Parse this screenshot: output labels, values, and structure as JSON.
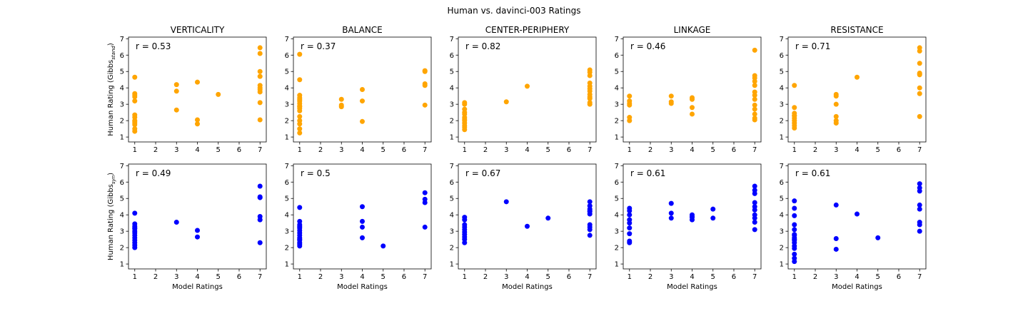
{
  "suptitle": "Human vs. davinci-003 Ratings",
  "colors": {
    "row1": "#ffa500",
    "row2": "#0000ff"
  },
  "chart_data": [
    {
      "type": "scatter",
      "title": "VERTICALITY",
      "r_label": "r = 0.53",
      "xlim": [
        0.7,
        7.3
      ],
      "ylim": [
        0.7,
        7.1
      ],
      "xticks": [
        1,
        2,
        3,
        4,
        5,
        6,
        7
      ],
      "yticks": [
        1,
        2,
        3,
        4,
        5,
        6,
        7
      ],
      "xlabel": "",
      "ylabel": "Human Rating (Gibbs",
      "ylabel_sub": "stand",
      "ylabel_tail": ")",
      "color": "#ffa500",
      "x": [
        1,
        1,
        1,
        1,
        1,
        1,
        1,
        1,
        1,
        1,
        1,
        1,
        1,
        3,
        3,
        3,
        4,
        4,
        4,
        5,
        7,
        7,
        7,
        7,
        7,
        7,
        7,
        7,
        7,
        7
      ],
      "y": [
        4.65,
        3.65,
        3.45,
        3.2,
        2.35,
        2.2,
        2.0,
        1.85,
        1.75,
        1.5,
        1.35,
        3.55,
        1.95,
        4.2,
        3.8,
        2.65,
        4.35,
        2.05,
        1.8,
        3.6,
        6.45,
        6.1,
        5.0,
        4.7,
        4.15,
        3.9,
        3.75,
        3.1,
        2.05,
        4.0
      ]
    },
    {
      "type": "scatter",
      "title": "BALANCE",
      "r_label": "r = 0.37",
      "xlim": [
        0.7,
        7.3
      ],
      "ylim": [
        0.7,
        7.1
      ],
      "xticks": [
        1,
        2,
        3,
        4,
        5,
        6,
        7
      ],
      "yticks": [
        1,
        2,
        3,
        4,
        5,
        6,
        7
      ],
      "xlabel": "",
      "ylabel": "",
      "color": "#ffa500",
      "x": [
        1,
        1,
        1,
        1,
        1,
        1,
        1,
        1,
        1,
        1,
        1,
        1,
        1,
        1,
        1,
        1,
        3,
        3,
        3,
        4,
        4,
        4,
        7,
        7,
        7,
        7,
        7
      ],
      "y": [
        6.05,
        4.5,
        3.55,
        3.4,
        3.2,
        3.05,
        2.9,
        2.75,
        2.6,
        2.25,
        2.0,
        1.8,
        1.5,
        1.25,
        3.3,
        2.85,
        3.3,
        2.95,
        2.85,
        3.9,
        3.2,
        1.95,
        5.05,
        5.0,
        4.25,
        4.15,
        2.95
      ]
    },
    {
      "type": "scatter",
      "title": "CENTER-PERIPHERY",
      "r_label": "r = 0.82",
      "xlim": [
        0.7,
        7.3
      ],
      "ylim": [
        0.7,
        7.1
      ],
      "xticks": [
        1,
        2,
        3,
        4,
        5,
        6,
        7
      ],
      "yticks": [
        1,
        2,
        3,
        4,
        5,
        6,
        7
      ],
      "xlabel": "",
      "ylabel": "",
      "color": "#ffa500",
      "x": [
        1,
        1,
        1,
        1,
        1,
        1,
        1,
        1,
        1,
        1,
        1,
        1,
        3,
        4,
        7,
        7,
        7,
        7,
        7,
        7,
        7,
        7,
        7,
        7,
        7,
        7
      ],
      "y": [
        3.1,
        3.0,
        2.7,
        2.5,
        2.4,
        2.2,
        2.1,
        2.0,
        1.85,
        1.7,
        1.6,
        1.45,
        3.15,
        4.1,
        5.1,
        4.95,
        4.75,
        4.3,
        4.1,
        3.95,
        3.8,
        3.6,
        3.45,
        3.35,
        3.1,
        3.0
      ]
    },
    {
      "type": "scatter",
      "title": "LINKAGE",
      "r_label": "r = 0.46",
      "xlim": [
        0.7,
        7.3
      ],
      "ylim": [
        0.7,
        7.1
      ],
      "xticks": [
        1,
        2,
        3,
        4,
        5,
        6,
        7
      ],
      "yticks": [
        1,
        2,
        3,
        4,
        5,
        6,
        7
      ],
      "xlabel": "",
      "ylabel": "",
      "color": "#ffa500",
      "x": [
        1,
        1,
        1,
        1,
        1,
        1,
        3,
        3,
        3,
        4,
        4,
        4,
        4,
        7,
        7,
        7,
        7,
        7,
        7,
        7,
        7,
        7,
        7,
        7,
        7,
        7
      ],
      "y": [
        3.5,
        3.2,
        3.05,
        2.95,
        2.2,
        2.0,
        3.5,
        3.15,
        3.05,
        3.4,
        3.3,
        2.8,
        2.4,
        6.3,
        4.75,
        4.6,
        4.4,
        4.15,
        3.75,
        3.55,
        3.3,
        2.95,
        2.7,
        2.4,
        2.15,
        2.05
      ]
    },
    {
      "type": "scatter",
      "title": "RESISTANCE",
      "r_label": "r = 0.71",
      "xlim": [
        0.7,
        7.3
      ],
      "ylim": [
        0.7,
        7.1
      ],
      "xticks": [
        1,
        2,
        3,
        4,
        5,
        6,
        7
      ],
      "yticks": [
        1,
        2,
        3,
        4,
        5,
        6,
        7
      ],
      "xlabel": "",
      "ylabel": "",
      "color": "#ffa500",
      "x": [
        1,
        1,
        1,
        1,
        1,
        1,
        1,
        1,
        1,
        1,
        3,
        3,
        3,
        3,
        3,
        3,
        4,
        7,
        7,
        7,
        7,
        7,
        7,
        7,
        7,
        7
      ],
      "y": [
        4.15,
        2.8,
        2.45,
        2.3,
        2.15,
        2.0,
        1.85,
        1.7,
        1.55,
        2.3,
        3.6,
        3.5,
        3.0,
        2.25,
        2.0,
        1.85,
        4.65,
        6.45,
        6.25,
        5.5,
        4.9,
        4.8,
        4.0,
        3.65,
        2.25,
        4.85
      ]
    },
    {
      "type": "scatter",
      "title": "",
      "r_label": "r = 0.49",
      "xlim": [
        0.7,
        7.3
      ],
      "ylim": [
        0.7,
        7.1
      ],
      "xticks": [
        1,
        2,
        3,
        4,
        5,
        6,
        7
      ],
      "yticks": [
        1,
        2,
        3,
        4,
        5,
        6,
        7
      ],
      "xlabel": "Model Ratings",
      "ylabel": "Human Rating (Gibbs",
      "ylabel_sub": "syn",
      "ylabel_tail": ")",
      "color": "#0000ff",
      "x": [
        1,
        1,
        1,
        1,
        1,
        1,
        1,
        1,
        1,
        1,
        1,
        1,
        1,
        3,
        4,
        4,
        7,
        7,
        7,
        7,
        7,
        7
      ],
      "y": [
        4.1,
        3.45,
        3.3,
        3.15,
        3.0,
        2.9,
        2.75,
        2.6,
        2.45,
        2.3,
        2.15,
        2.0,
        3.2,
        3.55,
        3.05,
        2.65,
        5.75,
        5.1,
        5.05,
        3.9,
        3.7,
        2.3
      ]
    },
    {
      "type": "scatter",
      "title": "",
      "r_label": "r = 0.5",
      "xlim": [
        0.7,
        7.3
      ],
      "ylim": [
        0.7,
        7.1
      ],
      "xticks": [
        1,
        2,
        3,
        4,
        5,
        6,
        7
      ],
      "yticks": [
        1,
        2,
        3,
        4,
        5,
        6,
        7
      ],
      "xlabel": "Model Ratings",
      "ylabel": "",
      "color": "#0000ff",
      "x": [
        1,
        1,
        1,
        1,
        1,
        1,
        1,
        1,
        1,
        1,
        1,
        1,
        1,
        1,
        4,
        4,
        4,
        4,
        5,
        7,
        7,
        7,
        7
      ],
      "y": [
        4.45,
        3.6,
        3.4,
        3.2,
        3.05,
        2.9,
        2.75,
        2.6,
        2.45,
        2.3,
        2.2,
        2.1,
        3.3,
        2.5,
        4.5,
        3.6,
        3.25,
        2.6,
        2.1,
        5.35,
        4.95,
        4.75,
        3.25
      ]
    },
    {
      "type": "scatter",
      "title": "",
      "r_label": "r = 0.67",
      "xlim": [
        0.7,
        7.3
      ],
      "ylim": [
        0.7,
        7.1
      ],
      "xticks": [
        1,
        2,
        3,
        4,
        5,
        6,
        7
      ],
      "yticks": [
        1,
        2,
        3,
        4,
        5,
        6,
        7
      ],
      "xlabel": "Model Ratings",
      "ylabel": "",
      "color": "#0000ff",
      "x": [
        1,
        1,
        1,
        1,
        1,
        1,
        1,
        1,
        1,
        1,
        3,
        4,
        5,
        7,
        7,
        7,
        7,
        7,
        7,
        7,
        7,
        7,
        7
      ],
      "y": [
        3.85,
        3.7,
        3.25,
        3.1,
        2.95,
        2.8,
        2.65,
        2.5,
        2.3,
        3.4,
        4.8,
        3.3,
        3.8,
        4.8,
        4.55,
        4.35,
        4.2,
        4.05,
        3.4,
        3.25,
        3.1,
        2.75,
        4.25
      ]
    },
    {
      "type": "scatter",
      "title": "",
      "r_label": "r = 0.61",
      "xlim": [
        0.7,
        7.3
      ],
      "ylim": [
        0.7,
        7.1
      ],
      "xticks": [
        1,
        2,
        3,
        4,
        5,
        6,
        7
      ],
      "yticks": [
        1,
        2,
        3,
        4,
        5,
        6,
        7
      ],
      "xlabel": "Model Ratings",
      "ylabel": "",
      "color": "#0000ff",
      "x": [
        1,
        1,
        1,
        1,
        1,
        1,
        1,
        1,
        1,
        3,
        3,
        3,
        4,
        4,
        4,
        4,
        5,
        5,
        7,
        7,
        7,
        7,
        7,
        7,
        7,
        7,
        7,
        7
      ],
      "y": [
        4.4,
        4.25,
        4.0,
        3.7,
        3.5,
        3.2,
        2.85,
        2.4,
        2.3,
        4.7,
        4.1,
        3.8,
        4.0,
        3.9,
        3.85,
        3.7,
        4.35,
        3.8,
        5.75,
        5.5,
        5.3,
        4.75,
        4.5,
        4.3,
        4.0,
        3.8,
        3.55,
        3.1
      ]
    },
    {
      "type": "scatter",
      "title": "",
      "r_label": "r = 0.61",
      "xlim": [
        0.7,
        7.3
      ],
      "ylim": [
        0.7,
        7.1
      ],
      "xticks": [
        1,
        2,
        3,
        4,
        5,
        6,
        7
      ],
      "yticks": [
        1,
        2,
        3,
        4,
        5,
        6,
        7
      ],
      "xlabel": "Model Ratings",
      "ylabel": "",
      "color": "#0000ff",
      "x": [
        1,
        1,
        1,
        1,
        1,
        1,
        1,
        1,
        1,
        1,
        1,
        1,
        1,
        1,
        1,
        1,
        3,
        3,
        3,
        4,
        5,
        7,
        7,
        7,
        7,
        7,
        7,
        7,
        7
      ],
      "y": [
        4.85,
        4.4,
        3.95,
        3.4,
        3.1,
        2.75,
        2.6,
        2.45,
        2.3,
        2.1,
        1.95,
        1.6,
        1.35,
        1.15,
        2.8,
        2.5,
        4.6,
        2.55,
        1.9,
        4.05,
        2.6,
        5.9,
        5.65,
        5.45,
        4.6,
        4.35,
        3.55,
        3.4,
        3.0
      ]
    }
  ]
}
